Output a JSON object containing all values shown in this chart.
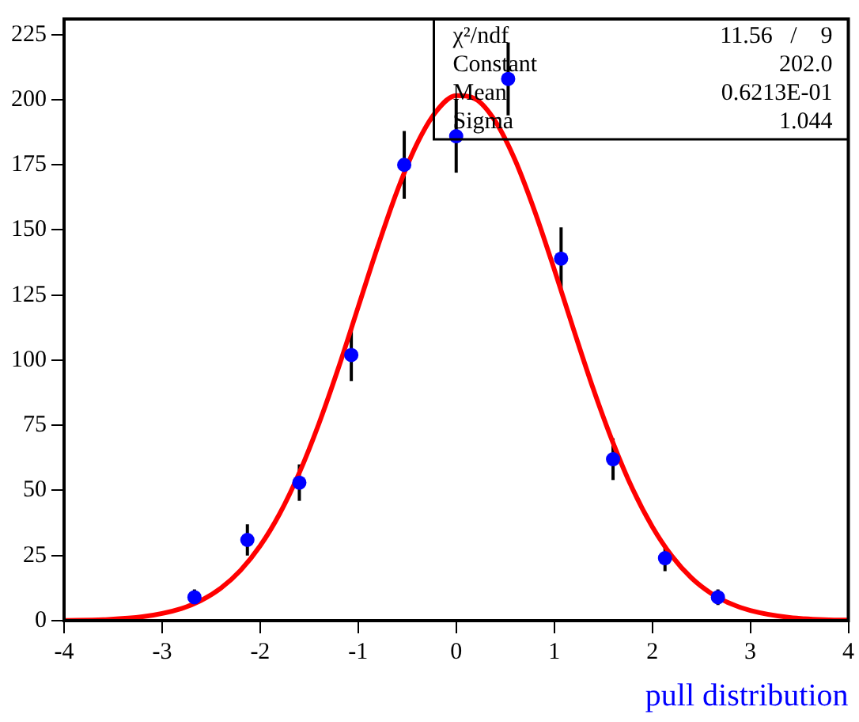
{
  "chart_data": {
    "type": "scatter",
    "xlabel": "pull distribution",
    "xlim": [
      -4,
      4
    ],
    "xticks": [
      -4,
      -3,
      -2,
      -1,
      0,
      1,
      2,
      3,
      4
    ],
    "ylim": [
      0,
      231
    ],
    "yticks": [
      0,
      25,
      50,
      75,
      100,
      125,
      150,
      175,
      200,
      225
    ],
    "grid": false,
    "legend": false,
    "marker": "circle",
    "annotations": [
      "χ²/ndf",
      "11.56   /    9",
      "Constant",
      "202.0",
      "Mean",
      "0.6213E-01",
      "Sigma",
      "1.044"
    ],
    "series": [
      {
        "color": "#0000ff",
        "x": [
          -2.67,
          -2.13,
          -1.6,
          -1.07,
          -0.53,
          0,
          0.53,
          1.07,
          1.6,
          2.13,
          2.67
        ],
        "values": [
          9,
          31,
          53,
          102,
          175,
          186,
          208,
          139,
          62,
          24,
          9
        ],
        "errors": [
          3,
          6,
          7,
          10,
          13,
          14,
          14,
          12,
          8,
          5,
          3
        ]
      },
      {
        "type": "line",
        "color": "#ff0000",
        "marker": "none",
        "x": [
          -4,
          -3.6,
          -3.2,
          -2.8,
          -2.6,
          -2.4,
          -2.2,
          -2,
          -1.8,
          -1.6,
          -1.4,
          -1.2,
          -1,
          -0.8,
          -0.6,
          -0.4,
          -0.2,
          0,
          0.2,
          0.4,
          0.6,
          0.8,
          1,
          1.2,
          1.4,
          1.6,
          1.8,
          2,
          2.2,
          2.4,
          2.6,
          2.8,
          3,
          3.4,
          3.8,
          4
        ],
        "values": [
          0.1,
          0.4,
          1.5,
          4.7,
          7.8,
          12.5,
          19.3,
          28.7,
          41.1,
          56.8,
          75.7,
          97.2,
          120.4,
          143.6,
          165.2,
          183.1,
          195.7,
          201.6,
          200.2,
          191.7,
          176.9,
          157.3,
          134.9,
          111.5,
          88.8,
          68.3,
          50.5,
          36.1,
          24.8,
          16.4,
          10.5,
          6.5,
          3.9,
          1.2,
          0.3,
          0.2
        ]
      }
    ]
  }
}
